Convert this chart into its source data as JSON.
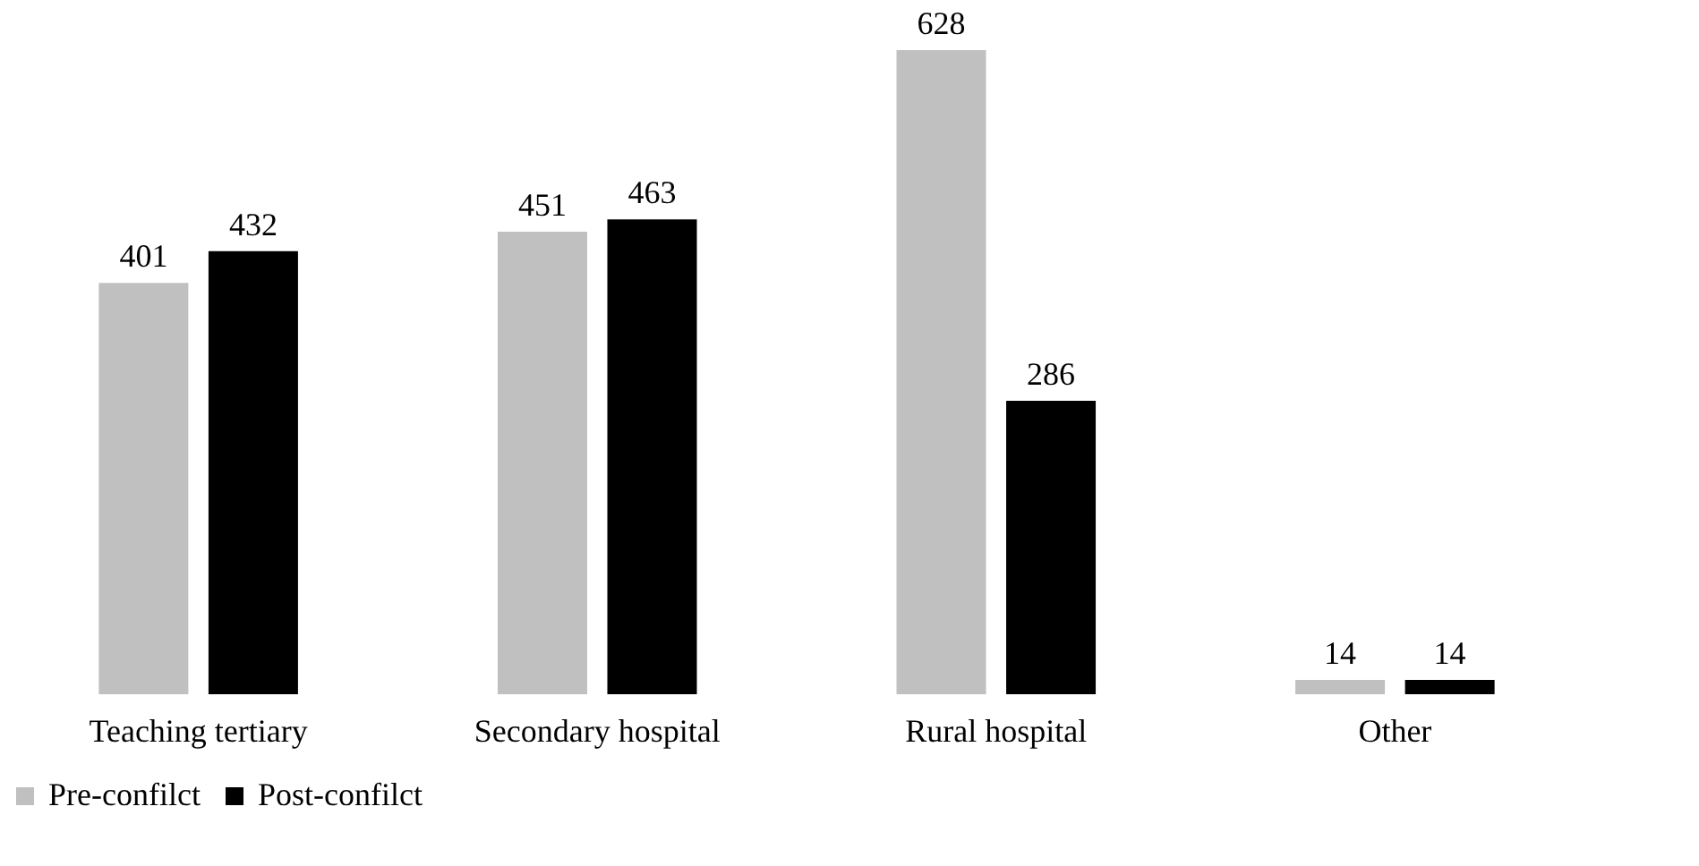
{
  "chart_data": {
    "type": "bar",
    "categories": [
      "Teaching tertiary",
      "Secondary hospital",
      "Rural hospital",
      "Other"
    ],
    "series": [
      {
        "name": "Pre-confilct",
        "color": "#c0c0c0",
        "values": [
          401,
          451,
          628,
          14
        ]
      },
      {
        "name": "Post-confilct",
        "color": "#000000",
        "values": [
          432,
          463,
          286,
          14
        ]
      }
    ],
    "data_labels": true,
    "legend": "bottom",
    "grid": false
  }
}
